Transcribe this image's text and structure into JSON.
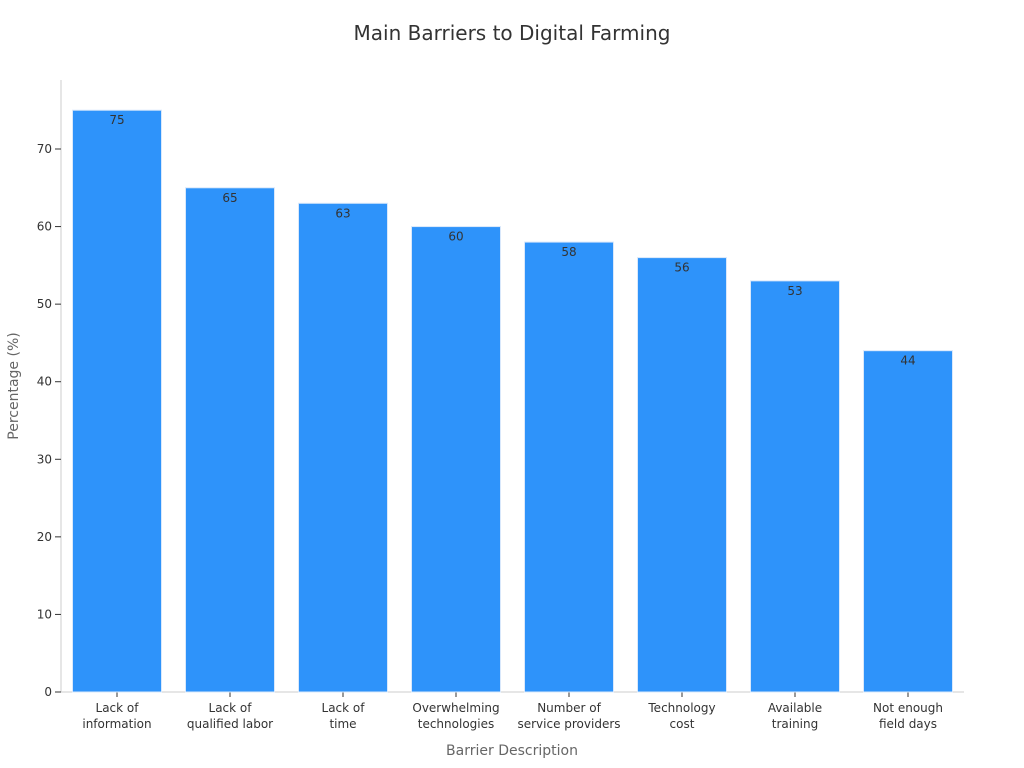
{
  "chart_data": {
    "type": "bar",
    "title": "Main Barriers to Digital Farming",
    "xlabel": "Barrier Description",
    "ylabel": "Percentage (%)",
    "categories": [
      [
        "Lack of",
        "information"
      ],
      [
        "Lack of",
        "qualified labor"
      ],
      [
        "Lack of",
        "time"
      ],
      [
        "Overwhelming",
        "technologies"
      ],
      [
        "Number of",
        "service providers"
      ],
      [
        "Technology",
        "cost"
      ],
      [
        "Available",
        "training"
      ],
      [
        "Not enough",
        "field days"
      ]
    ],
    "values": [
      75,
      65,
      63,
      60,
      58,
      56,
      53,
      44
    ],
    "ylim": [
      0,
      80
    ],
    "yticks": [
      0,
      10,
      20,
      30,
      40,
      50,
      60,
      70
    ],
    "grid": false,
    "legend": "none",
    "colors": {
      "bar": "#2E93FA",
      "bar_edge": "#d9e8fb",
      "axis": "#cccccc",
      "text": "#333333",
      "axis_title": "#666666"
    }
  }
}
